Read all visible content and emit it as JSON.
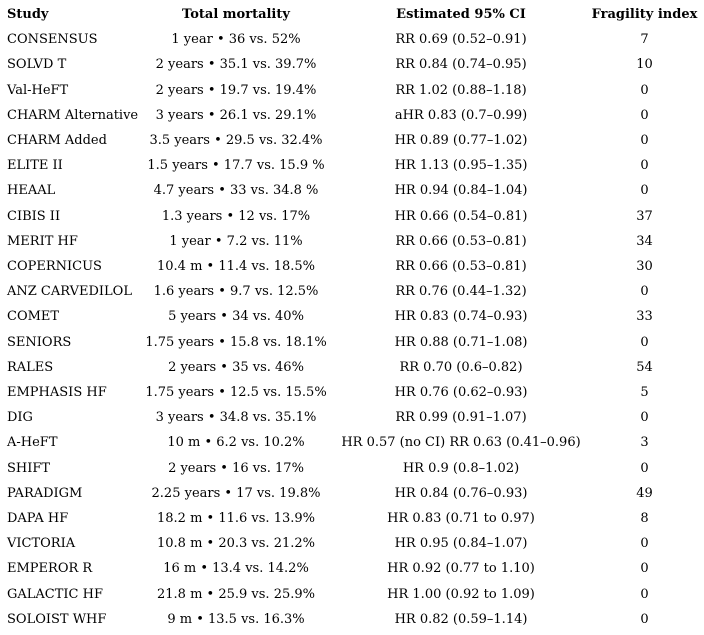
{
  "table": {
    "headers": [
      "Study",
      "Total mortality",
      "Estimated 95% CI",
      "Fragility index"
    ],
    "rows": [
      {
        "study": "CONSENSUS",
        "mortality": "1 year • 36 vs. 52%",
        "ci": "RR 0.69 (0.52–0.91)",
        "fragility": "7"
      },
      {
        "study": "SOLVD T",
        "mortality": "2 years • 35.1 vs. 39.7%",
        "ci": "RR 0.84 (0.74–0.95)",
        "fragility": "10"
      },
      {
        "study": "Val-HeFT",
        "mortality": "2 years • 19.7 vs. 19.4%",
        "ci": "RR 1.02 (0.88–1.18)",
        "fragility": "0"
      },
      {
        "study": "CHARM Alternative",
        "mortality": "3 years • 26.1 vs. 29.1%",
        "ci": "aHR 0.83 (0.7–0.99)",
        "fragility": "0"
      },
      {
        "study": "CHARM Added",
        "mortality": "3.5 years • 29.5 vs. 32.4%",
        "ci": "HR 0.89 (0.77–1.02)",
        "fragility": "0"
      },
      {
        "study": "ELITE II",
        "mortality": "1.5 years • 17.7 vs. 15.9 %",
        "ci": "HR 1.13 (0.95–1.35)",
        "fragility": "0"
      },
      {
        "study": "HEAAL",
        "mortality": "4.7 years • 33 vs. 34.8 %",
        "ci": "HR 0.94 (0.84–1.04)",
        "fragility": "0"
      },
      {
        "study": "CIBIS II",
        "mortality": "1.3 years • 12 vs. 17%",
        "ci": "HR 0.66 (0.54–0.81)",
        "fragility": "37"
      },
      {
        "study": "MERIT HF",
        "mortality": "1 year • 7.2 vs. 11%",
        "ci": "RR 0.66 (0.53–0.81)",
        "fragility": "34"
      },
      {
        "study": "COPERNICUS",
        "mortality": "10.4 m • 11.4 vs. 18.5%",
        "ci": "RR 0.66 (0.53–0.81)",
        "fragility": "30"
      },
      {
        "study": "ANZ CARVEDILOL",
        "mortality": "1.6 years • 9.7 vs. 12.5%",
        "ci": "RR 0.76 (0.44–1.32)",
        "fragility": "0"
      },
      {
        "study": "COMET",
        "mortality": "5 years • 34 vs. 40%",
        "ci": "HR 0.83 (0.74–0.93)",
        "fragility": "33"
      },
      {
        "study": "SENIORS",
        "mortality": "1.75 years • 15.8 vs. 18.1%",
        "ci": "HR 0.88 (0.71–1.08)",
        "fragility": "0"
      },
      {
        "study": "RALES",
        "mortality": "2 years • 35 vs. 46%",
        "ci": "RR 0.70 (0.6–0.82)",
        "fragility": "54"
      },
      {
        "study": "EMPHASIS HF",
        "mortality": "1.75 years • 12.5 vs. 15.5%",
        "ci": "HR 0.76 (0.62–0.93)",
        "fragility": "5"
      },
      {
        "study": "DIG",
        "mortality": "3 years • 34.8 vs. 35.1%",
        "ci": "RR 0.99 (0.91–1.07)",
        "fragility": "0"
      },
      {
        "study": "A-HeFT",
        "mortality": "10 m • 6.2 vs. 10.2%",
        "ci": "HR 0.57 (no CI) RR 0.63 (0.41–0.96)",
        "fragility": "3"
      },
      {
        "study": "SHIFT",
        "mortality": "2 years • 16 vs. 17%",
        "ci": "HR 0.9 (0.8–1.02)",
        "fragility": "0"
      },
      {
        "study": "PARADIGM",
        "mortality": "2.25 years • 17 vs. 19.8%",
        "ci": "HR 0.84 (0.76–0.93)",
        "fragility": "49"
      },
      {
        "study": "DAPA HF",
        "mortality": "18.2 m • 11.6 vs. 13.9%",
        "ci": "HR 0.83 (0.71 to 0.97)",
        "fragility": "8"
      },
      {
        "study": "VICTORIA",
        "mortality": "10.8 m • 20.3 vs. 21.2%",
        "ci": "HR 0.95 (0.84–1.07)",
        "fragility": "0"
      },
      {
        "study": "EMPEROR R",
        "mortality": "16 m • 13.4 vs. 14.2%",
        "ci": "HR 0.92 (0.77 to 1.10)",
        "fragility": "0"
      },
      {
        "study": "GALACTIC HF",
        "mortality": "21.8 m • 25.9 vs. 25.9%",
        "ci": "HR 1.00 (0.92 to 1.09)",
        "fragility": "0"
      },
      {
        "study": "SOLOIST WHF",
        "mortality": "9 m • 13.5 vs. 16.3%",
        "ci": "HR 0.82 (0.59–1.14)",
        "fragility": "0"
      }
    ]
  }
}
